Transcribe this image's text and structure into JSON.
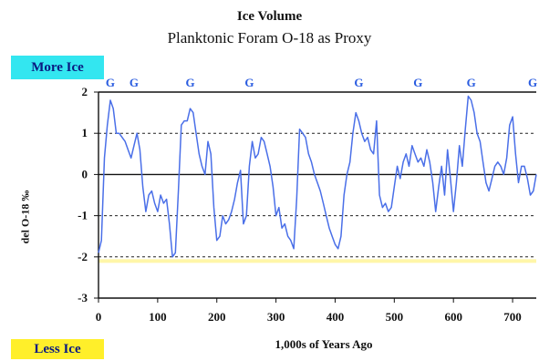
{
  "header": {
    "title": "Ice Volume",
    "subtitle": "Planktonic Foram O-18 as Proxy"
  },
  "legend_badges": {
    "more_ice": "More Ice",
    "less_ice": "Less Ice",
    "more_ice_color": "#33e6f0",
    "less_ice_color": "#ffef2a"
  },
  "colors": {
    "line": "#4a6fe8",
    "glacial_marker": "#2a5ce0",
    "reference_band": "#fff6a8"
  },
  "chart_data": {
    "type": "line",
    "title": "Ice Volume",
    "subtitle": "Planktonic Foram O-18 as Proxy",
    "xlabel": "1,000s of Years Ago",
    "ylabel": "del O-18 ‰",
    "xlim": [
      0,
      740
    ],
    "ylim": [
      -3,
      2
    ],
    "xticks": [
      "0",
      "100",
      "200",
      "300",
      "400",
      "500",
      "600",
      "700"
    ],
    "yticks": [
      "2",
      "1",
      "0",
      "-1",
      "-2",
      "-3"
    ],
    "dashed_lines_y": [
      1,
      -1,
      -2
    ],
    "solid_lines_y": [
      2,
      0
    ],
    "reference_band_y": -2.1,
    "glacial_marker_label": "G",
    "glacial_markers_x": [
      20,
      60,
      155,
      255,
      440,
      540,
      630,
      740
    ],
    "series": [
      {
        "x": [
          0,
          5,
          10,
          15,
          20,
          25,
          30,
          35,
          40,
          45,
          50,
          55,
          60,
          65,
          70,
          75,
          80,
          85,
          90,
          95,
          100,
          105,
          110,
          115,
          120,
          125,
          130,
          135,
          140,
          145,
          150,
          155,
          160,
          165,
          170,
          175,
          180,
          185,
          190,
          195,
          200,
          205,
          210,
          215,
          220,
          225,
          230,
          235,
          240,
          245,
          250,
          255,
          260,
          265,
          270,
          275,
          280,
          285,
          290,
          295,
          300,
          305,
          310,
          315,
          320,
          325,
          330,
          335,
          340,
          345,
          350,
          355,
          360,
          365,
          370,
          375,
          380,
          385,
          390,
          395,
          400,
          405,
          410,
          415,
          420,
          425,
          430,
          435,
          440,
          445,
          450,
          455,
          460,
          465,
          470,
          475,
          480,
          485,
          490,
          495,
          500,
          505,
          510,
          515,
          520,
          525,
          530,
          535,
          540,
          545,
          550,
          555,
          560,
          565,
          570,
          575,
          580,
          585,
          590,
          595,
          600,
          605,
          610,
          615,
          620,
          625,
          630,
          635,
          640,
          645,
          650,
          655,
          660,
          665,
          670,
          675,
          680,
          685,
          690,
          695,
          700,
          705,
          710,
          715,
          720,
          725,
          730,
          735,
          740
        ],
        "y": [
          -1.9,
          -1.6,
          0.4,
          1.2,
          1.8,
          1.6,
          1.0,
          1.0,
          0.9,
          0.8,
          0.6,
          0.4,
          0.7,
          1.0,
          0.6,
          -0.3,
          -0.9,
          -0.5,
          -0.4,
          -0.7,
          -0.9,
          -0.5,
          -0.7,
          -0.6,
          -1.2,
          -2.0,
          -1.9,
          -0.4,
          1.2,
          1.3,
          1.3,
          1.6,
          1.5,
          1.0,
          0.5,
          0.2,
          0.0,
          0.8,
          0.5,
          -0.8,
          -1.6,
          -1.5,
          -1.0,
          -1.2,
          -1.1,
          -0.9,
          -0.6,
          -0.2,
          0.1,
          -1.2,
          -1.0,
          0.2,
          0.8,
          0.4,
          0.5,
          0.9,
          0.8,
          0.5,
          0.2,
          -0.3,
          -1.0,
          -0.8,
          -1.3,
          -1.2,
          -1.5,
          -1.6,
          -1.8,
          -0.6,
          1.1,
          1.0,
          0.9,
          0.5,
          0.3,
          0.0,
          -0.2,
          -0.4,
          -0.7,
          -1.0,
          -1.3,
          -1.5,
          -1.7,
          -1.8,
          -1.5,
          -0.5,
          0.0,
          0.3,
          1.0,
          1.5,
          1.3,
          1.0,
          0.8,
          0.9,
          0.6,
          0.5,
          1.3,
          -0.5,
          -0.8,
          -0.7,
          -0.9,
          -0.8,
          -0.3,
          0.2,
          -0.1,
          0.3,
          0.5,
          0.2,
          0.7,
          0.5,
          0.3,
          0.4,
          0.2,
          0.6,
          0.3,
          -0.2,
          -0.9,
          -0.3,
          0.2,
          -0.5,
          0.6,
          -0.1,
          -0.9,
          -0.2,
          0.7,
          0.2,
          1.1,
          1.9,
          1.8,
          1.5,
          1.0,
          0.8,
          0.3,
          -0.2,
          -0.4,
          -0.1,
          0.2,
          0.3,
          0.2,
          0.0,
          0.4,
          1.2,
          1.4,
          0.5,
          -0.2,
          0.2,
          0.2,
          -0.1,
          -0.5,
          -0.4,
          0.0
        ]
      }
    ]
  }
}
